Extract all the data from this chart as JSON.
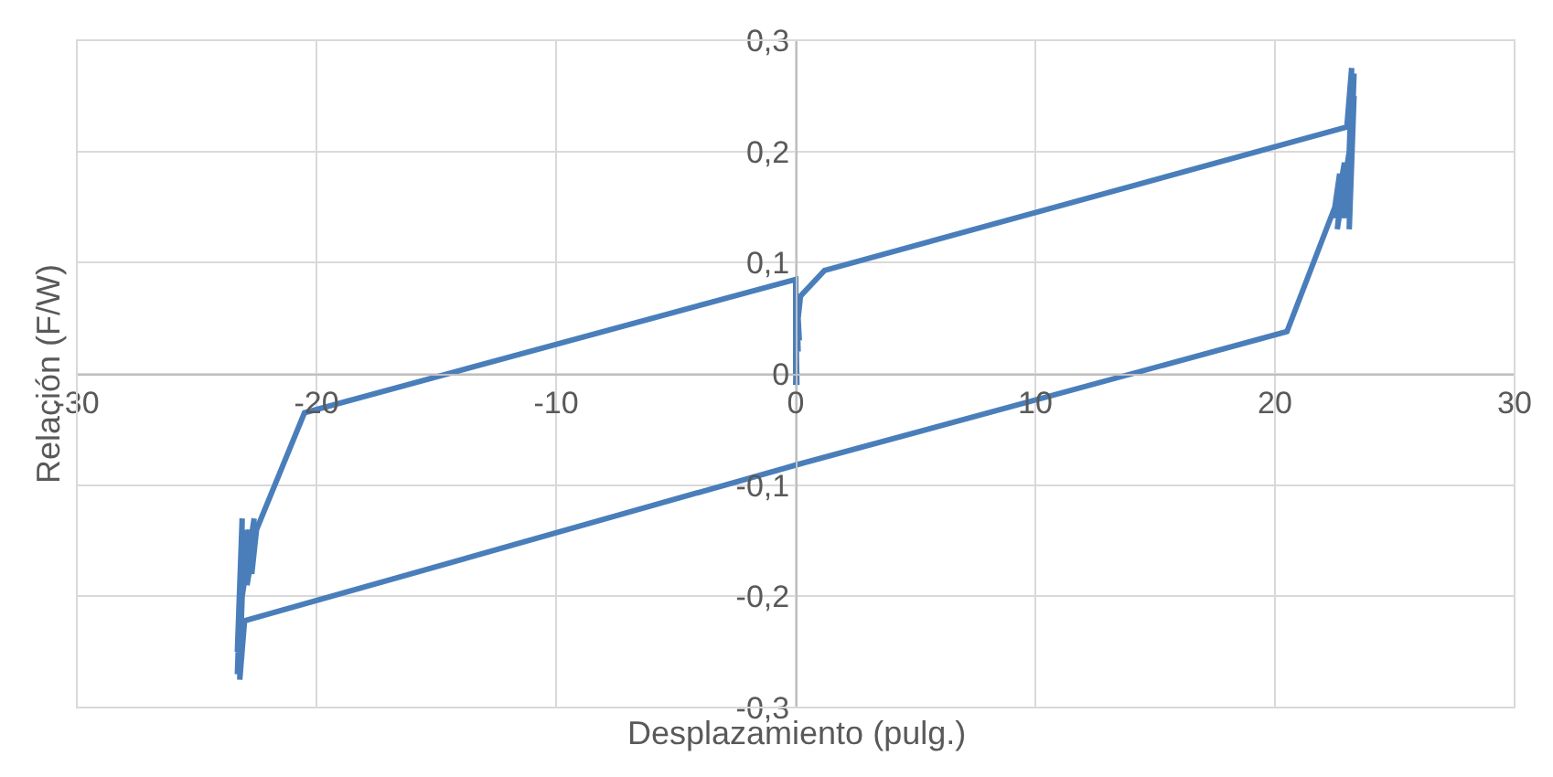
{
  "chart_data": {
    "type": "line",
    "xlabel": "Desplazamiento (pulg.)",
    "ylabel": "Relación (F/W)",
    "series": [
      {
        "color": "#4a7ebb",
        "x": [
          0,
          0,
          0.05,
          0,
          0.1,
          0.05,
          0.15,
          0.1,
          0.2,
          1.2,
          23.0,
          23.2,
          23.1,
          23.3,
          23.0,
          23.2,
          23.1,
          23.3,
          23.0,
          23.2,
          22.8,
          23.1,
          22.6,
          22.9,
          22.5,
          22.7,
          22.5,
          20.5,
          0,
          -23.0,
          -23.2,
          -23.1,
          -23.3,
          -23.0,
          -23.2,
          -23.1,
          -23.3,
          -23.0,
          -23.2,
          -22.8,
          -23.1,
          -22.6,
          -22.9,
          -22.5,
          -22.7,
          -22.5,
          -20.5,
          0,
          0,
          0.05,
          0
        ],
        "values": [
          0,
          0.03,
          -0.01,
          0.05,
          0.02,
          0.06,
          0.03,
          0.05,
          0.07,
          0.093,
          0.222,
          0.275,
          0.15,
          0.27,
          0.14,
          0.26,
          0.13,
          0.25,
          0.15,
          0.22,
          0.14,
          0.2,
          0.13,
          0.19,
          0.14,
          0.18,
          0.15,
          0.038,
          -0.082,
          -0.222,
          -0.275,
          -0.15,
          -0.27,
          -0.14,
          -0.26,
          -0.13,
          -0.25,
          -0.15,
          -0.22,
          -0.14,
          -0.2,
          -0.13,
          -0.19,
          -0.14,
          -0.18,
          -0.14,
          -0.035,
          0.085,
          0.02,
          0.04,
          -0.01
        ]
      }
    ],
    "xlim": [
      -30,
      30
    ],
    "xticks": [
      -30,
      -20,
      -10,
      0,
      10,
      20,
      30
    ],
    "ylim": [
      -0.3,
      0.3
    ],
    "yticks": [
      {
        "value": -0.3,
        "label": "-0,3"
      },
      {
        "value": -0.2,
        "label": "-0,2"
      },
      {
        "value": -0.1,
        "label": "-0,1"
      },
      {
        "value": 0,
        "label": "0"
      },
      {
        "value": 0.1,
        "label": "0,1"
      },
      {
        "value": 0.2,
        "label": "0,2"
      },
      {
        "value": 0.3,
        "label": "0,3"
      }
    ],
    "grid": true,
    "marker": "none",
    "line_style": "solid"
  }
}
